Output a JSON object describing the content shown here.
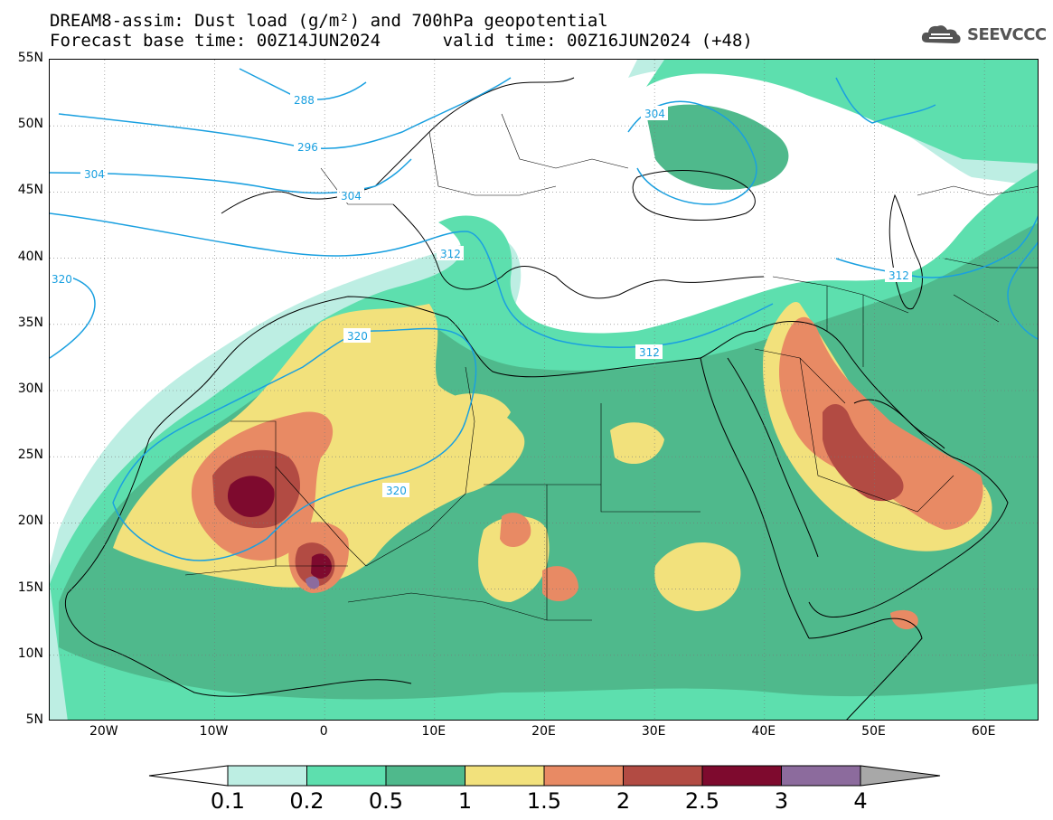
{
  "title": {
    "line1": "DREAM8-assim: Dust load (g/m²) and 700hPa geopotential",
    "line2": "Forecast base time: 00Z14JUN2024      valid time: 00Z16JUN2024 (+48)"
  },
  "brand": {
    "name": "SEEVCCC",
    "icon": "cloud-icon"
  },
  "axes": {
    "lat_labels": [
      "55N",
      "50N",
      "45N",
      "40N",
      "35N",
      "30N",
      "25N",
      "20N",
      "15N",
      "10N",
      "5N"
    ],
    "lon_labels": [
      "20W",
      "10W",
      "0",
      "10E",
      "20E",
      "30E",
      "40E",
      "50E",
      "60E"
    ],
    "lat_range": [
      5,
      55
    ],
    "lon_range": [
      -25,
      65
    ]
  },
  "contour_labels": [
    "288",
    "296",
    "304",
    "304",
    "304",
    "312",
    "312",
    "312",
    "320",
    "320",
    "320"
  ],
  "legend": {
    "labels": [
      "0.1",
      "0.2",
      "0.5",
      "1",
      "1.5",
      "2",
      "2.5",
      "3",
      "4"
    ],
    "colors": {
      "0.1-0.2": "#bdeee3",
      "0.2-0.5": "#5ddfae",
      "0.5-1": "#4fb98c",
      "1-1.5": "#f2e17c",
      "1.5-2": "#e88a64",
      "2-2.5": "#b24b43",
      "2.5-3": "#7e0a2e",
      "3-4": "#8c6b9d",
      "over-4": "#a8a8a8"
    }
  }
}
